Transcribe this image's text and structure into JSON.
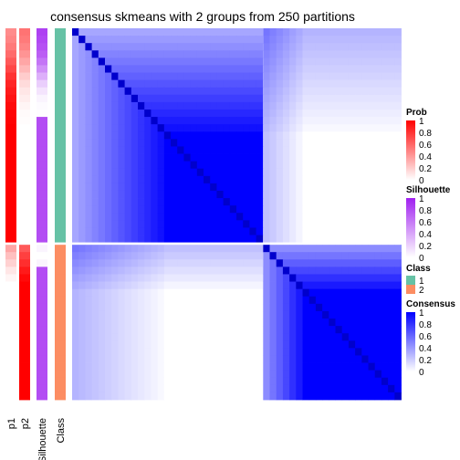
{
  "chart_data": {
    "type": "heatmap",
    "title": "consensus skmeans with 2 groups from 250 partitions",
    "annotation_columns": [
      "p1",
      "p2",
      "Silhouette",
      "Class"
    ],
    "n_samples": 50,
    "group_sizes": [
      29,
      21
    ],
    "legends": [
      {
        "title": "Prob",
        "colors": [
          "#ffffff",
          "#ff0000"
        ],
        "ticks": [
          "1",
          "0.8",
          "0.6",
          "0.4",
          "0.2",
          "0"
        ]
      },
      {
        "title": "Silhouette",
        "colors": [
          "#ffffff",
          "#a020f0"
        ],
        "ticks": [
          "1",
          "0.8",
          "0.6",
          "0.4",
          "0.2",
          "0"
        ]
      },
      {
        "title": "Class",
        "items": [
          {
            "label": "1",
            "color": "#66c2a5"
          },
          {
            "label": "2",
            "color": "#fc8d62"
          }
        ]
      },
      {
        "title": "Consensus",
        "colors": [
          "#ffffff",
          "#0000ff"
        ],
        "ticks": [
          "1",
          "0.8",
          "0.6",
          "0.4",
          "0.2",
          "0"
        ]
      }
    ]
  }
}
